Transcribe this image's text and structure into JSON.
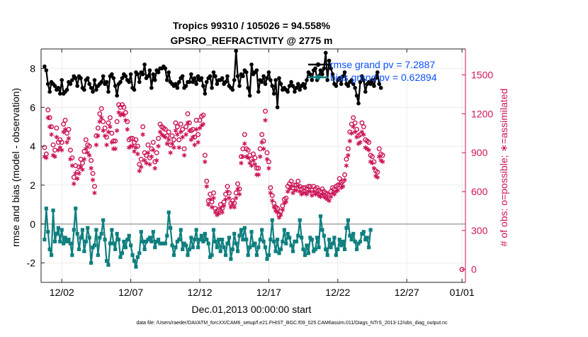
{
  "chart_data": {
    "type": "line",
    "title_line1": "Tropics 99310 / 105026 = 94.558%",
    "title_line2": "GPSRO_REFRACTIVITY @ 2775 m",
    "xlabel": "Dec.01,2013 00:00:00 start",
    "ylabel_left": "rmse and bias (model - observation)",
    "ylabel_right": "# of obs: o=possible; ∗=assimilated",
    "footnote": "data file: /Users/raeder/DAI/ATM_forcXX/CAM6_setup/f.e21.FHIST_BGC.f09_025.CAM6assim.011/Diags_NTrS_2013-12/obs_diag_output.nc",
    "xlim": [
      0.5,
      31.25
    ],
    "ylim_left": [
      -3,
      9
    ],
    "ylim_right": [
      -100,
      1700
    ],
    "x_ticks": [
      {
        "value": 2,
        "label": "12/02"
      },
      {
        "value": 7,
        "label": "12/07"
      },
      {
        "value": 12,
        "label": "12/12"
      },
      {
        "value": 17,
        "label": "12/17"
      },
      {
        "value": 22,
        "label": "12/22"
      },
      {
        "value": 27,
        "label": "12/27"
      },
      {
        "value": 31,
        "label": "01/01"
      }
    ],
    "y_ticks_left": [
      {
        "value": -2,
        "label": "-2"
      },
      {
        "value": 0,
        "label": "0"
      },
      {
        "value": 2,
        "label": "2"
      },
      {
        "value": 4,
        "label": "4"
      },
      {
        "value": 6,
        "label": "6"
      },
      {
        "value": 8,
        "label": "8"
      }
    ],
    "y_ticks_right": [
      {
        "value": 0,
        "label": "0"
      },
      {
        "value": 300,
        "label": "300"
      },
      {
        "value": 600,
        "label": "600"
      },
      {
        "value": 900,
        "label": "900"
      },
      {
        "value": 1200,
        "label": "1200"
      },
      {
        "value": 1500,
        "label": "1500"
      }
    ],
    "zero_line": 0,
    "grid": true,
    "legend_position": "top-right",
    "legend": [
      {
        "name": "rmse grand pv = 7.2887",
        "color": "#000000"
      },
      {
        "name": "bias grand pv = 0.62894",
        "color": "#0f7f7f"
      }
    ],
    "extra_possible_point": {
      "x": 31,
      "count": 0
    },
    "series": {
      "rmse": {
        "color": "#000000",
        "axis": "left",
        "x_start": 0.75,
        "x_step": 0.125,
        "values": [
          8.1,
          7.9,
          7.2,
          6.8,
          7.3,
          7.2,
          7.1,
          6.9,
          7.0,
          6.7,
          7.4,
          6.7,
          6.8,
          6.9,
          7.3,
          7.2,
          7.4,
          7.6,
          7.5,
          7.1,
          7.6,
          7.5,
          7.0,
          6.9,
          7.4,
          7.5,
          7.2,
          7.0,
          6.8,
          7.4,
          6.9,
          7.1,
          7.2,
          7.3,
          7.6,
          7.2,
          7.3,
          6.8,
          7.6,
          7.7,
          7.5,
          7.1,
          6.6,
          7.2,
          7.3,
          7.5,
          7.7,
          7.6,
          7.4,
          7.3,
          7.7,
          7.0,
          6.9,
          7.8,
          7.7,
          7.3,
          7.8,
          7.7,
          8.2,
          7.5,
          7.6,
          7.9,
          7.0,
          7.7,
          7.4,
          7.9,
          7.8,
          8.0,
          8.0,
          8.1,
          8.0,
          7.4,
          7.8,
          7.3,
          7.2,
          7.1,
          7.2,
          7.0,
          7.3,
          7.5,
          7.6,
          7.0,
          7.1,
          7.3,
          7.3,
          7.7,
          7.3,
          7.5,
          7.2,
          7.6,
          7.4,
          7.5,
          7.1,
          6.7,
          7.3,
          7.5,
          7.6,
          7.0,
          7.8,
          7.6,
          7.2,
          7.4,
          7.4,
          7.5,
          7.2,
          7.3,
          7.6,
          7.1,
          7.0,
          6.9,
          7.4,
          8.9,
          7.6,
          7.1,
          7.7,
          7.6,
          7.9,
          7.8,
          7.0,
          6.6,
          8.2,
          7.7,
          7.8,
          7.9,
          6.8,
          7.4,
          7.3,
          7.6,
          7.2,
          7.5,
          7.8,
          7.4,
          7.1,
          6.7,
          7.4,
          6.0,
          7.5,
          7.2,
          6.9,
          7.0,
          6.9,
          6.8,
          7.1,
          7.3,
          7.1,
          6.8,
          7.0,
          7.2,
          6.9,
          7.1,
          7.2,
          7.0,
          7.4,
          7.8,
          7.7,
          7.4,
          7.9,
          8.0,
          7.4,
          7.6,
          7.9,
          7.7,
          8.0,
          8.8,
          7.4,
          8.4,
          8.0,
          7.7,
          7.2,
          7.1,
          7.4,
          7.5,
          7.2,
          7.6,
          7.8,
          7.2,
          7.1,
          7.3,
          7.4,
          7.2,
          7.0,
          6.6,
          6.2,
          7.3,
          7.6,
          7.4,
          6.8,
          7.2,
          7.3,
          7.2,
          7.4,
          7.1,
          7.5,
          7.8,
          7.2,
          7.0
        ]
      },
      "bias": {
        "color": "#0f7f7f",
        "axis": "left",
        "x_start": 0.75,
        "x_step": 0.125,
        "values": [
          -0.8,
          0.8,
          -0.4,
          -1.3,
          -1.6,
          0.7,
          -0.9,
          -0.5,
          -0.2,
          -0.9,
          -0.3,
          -1.0,
          -0.7,
          -0.9,
          -0.8,
          -1.0,
          -1.6,
          -0.3,
          0.8,
          -0.5,
          -1.3,
          -0.7,
          -0.3,
          -1.4,
          -0.9,
          -0.2,
          -0.7,
          -2.0,
          -1.2,
          -1.1,
          -0.3,
          -1.6,
          -0.7,
          -0.5,
          0.2,
          -0.8,
          -1.9,
          -2.1,
          -1.0,
          -0.3,
          -1.0,
          -1.3,
          -0.5,
          -0.8,
          -1.7,
          -1.5,
          -0.9,
          -1.2,
          -0.8,
          -0.6,
          -1.1,
          -1.6,
          -1.9,
          -2.2,
          -1.7,
          -1.5,
          -0.4,
          -0.9,
          -1.3,
          -0.9,
          -0.8,
          -0.7,
          -0.9,
          -0.4,
          -1.2,
          -0.9,
          -0.8,
          -1.0,
          -1.0,
          -1.0,
          -1.0,
          -0.6,
          0.6,
          -0.2,
          -1.1,
          -1.6,
          -1.2,
          -0.9,
          -0.8,
          -0.3,
          -1.3,
          -1.0,
          -1.1,
          -1.6,
          -1.3,
          -0.7,
          -1.2,
          -0.8,
          -0.3,
          -1.2,
          -0.8,
          -0.6,
          -0.9,
          -0.5,
          -0.8,
          -1.0,
          -1.7,
          -1.6,
          -0.3,
          -0.9,
          -1.2,
          -0.8,
          -1.4,
          -0.8,
          -1.2,
          -1.6,
          -1.0,
          -0.7,
          -1.8,
          -1.3,
          -0.5,
          -1.0,
          -1.4,
          -0.6,
          -0.3,
          -0.8,
          -0.2,
          -0.8,
          -1.6,
          -1.2,
          -0.4,
          -1.1,
          -1.0,
          -1.6,
          -1.2,
          -0.8,
          -0.3,
          -0.9,
          -1.2,
          -1.8,
          -1.6,
          -0.8,
          0.2,
          -0.9,
          -1.4,
          -0.8,
          -1.5,
          -1.3,
          -0.9,
          -0.3,
          -1.0,
          -0.5,
          -0.7,
          -1.1,
          -1.4,
          -0.9,
          -0.9,
          -0.6,
          0.2,
          -0.7,
          -1.3,
          -1.6,
          -1.1,
          -1.5,
          -0.7,
          -0.8,
          -1.4,
          -1.3,
          -0.7,
          -1.2,
          0.4,
          -0.3,
          -0.6,
          -1.3,
          -1.6,
          -0.8,
          -1.2,
          -1.0,
          -0.7,
          -1.6,
          -1.3,
          -0.8,
          -1.1,
          -0.9,
          -1.3,
          -0.2,
          0.2,
          -0.6,
          -0.8,
          -0.5,
          -0.9,
          -1.3,
          -1.0,
          -0.9,
          -0.5,
          -0.4,
          -0.8,
          -0.7,
          -1.2,
          -0.3
        ]
      },
      "obs_possible": {
        "color": "#cc1458",
        "axis": "right",
        "marker": "circle",
        "x_start": 0.75,
        "x_step": 0.125,
        "values": [
          940,
          890,
          1230,
          1170,
          1100,
          960,
          920,
          1090,
          980,
          1000,
          980,
          1120,
          1150,
          1050,
          1080,
          920,
          860,
          710,
          800,
          750,
          790,
          850,
          820,
          910,
          1000,
          960,
          950,
          840,
          740,
          640,
          1030,
          1090,
          1200,
          1240,
          1140,
          1090,
          1020,
          1130,
          1170,
          1050,
          990,
          990,
          1140,
          1270,
          1250,
          1270,
          1250,
          1210,
          1140,
          1000,
          1010,
          1010,
          980,
          1000,
          950,
          810,
          850,
          1100,
          900,
          880,
          960,
          860,
          930,
          980,
          830,
          900,
          1010,
          1120,
          1100,
          1090,
          1080,
          1030,
          1060,
          960,
          1030,
          1000,
          1130,
          1100,
          1000,
          1120,
          1080,
          930,
          1100,
          1200,
          1130,
          1070,
          1080,
          1020,
          1150,
          1040,
          1150,
          1180,
          1190,
          880,
          680,
          530,
          580,
          520,
          590,
          470,
          450,
          460,
          500,
          470,
          520,
          580,
          640,
          590,
          510,
          530,
          510,
          590,
          660,
          620,
          870,
          930,
          1040,
          930,
          920,
          880,
          850,
          890,
          860,
          780,
          780,
          930,
          1040,
          990,
          1220,
          900,
          830,
          630,
          570,
          510,
          480,
          470,
          420,
          450,
          490,
          540,
          550,
          640,
          660,
          680,
          630,
          650,
          650,
          680,
          640,
          620,
          630,
          630,
          620,
          640,
          640,
          610,
          640,
          620,
          630,
          610,
          600,
          620,
          600,
          590,
          580,
          570,
          600,
          630,
          620,
          640,
          650,
          700,
          670,
          680,
          730,
          850,
          930,
          1060,
          1120,
          1170,
          1130,
          1080,
          1030,
          1040,
          1130,
          1100,
          1000,
          990,
          980,
          880,
          870,
          830,
          760,
          750,
          930,
          890,
          880
        ]
      },
      "obs_assimilated": {
        "color": "#cc1458",
        "axis": "right",
        "marker": "asterisk",
        "x_start": 0.75,
        "x_step": 0.125,
        "values": [
          870,
          860,
          1170,
          1100,
          1040,
          880,
          870,
          1020,
          920,
          940,
          920,
          1060,
          1080,
          980,
          1010,
          850,
          800,
          660,
          740,
          700,
          740,
          790,
          770,
          850,
          930,
          900,
          880,
          780,
          690,
          590,
          960,
          1030,
          1140,
          1170,
          1070,
          1030,
          960,
          1060,
          1100,
          980,
          930,
          930,
          1070,
          1210,
          1190,
          1200,
          1190,
          1150,
          1080,
          940,
          950,
          950,
          910,
          940,
          890,
          760,
          790,
          1040,
          840,
          820,
          900,
          810,
          870,
          920,
          780,
          840,
          950,
          1060,
          1040,
          1030,
          1020,
          970,
          1000,
          900,
          970,
          940,
          1070,
          1040,
          940,
          1060,
          1020,
          880,
          1040,
          1130,
          1070,
          1000,
          1020,
          960,
          1080,
          980,
          1090,
          1110,
          1120,
          830,
          640,
          500,
          540,
          480,
          550,
          440,
          420,
          430,
          470,
          440,
          490,
          540,
          600,
          550,
          480,
          500,
          480,
          550,
          620,
          580,
          820,
          870,
          970,
          870,
          860,
          820,
          800,
          840,
          810,
          730,
          730,
          870,
          980,
          930,
          1150,
          850,
          780,
          590,
          530,
          480,
          450,
          440,
          400,
          420,
          460,
          510,
          520,
          600,
          620,
          640,
          590,
          610,
          610,
          640,
          600,
          580,
          590,
          590,
          580,
          600,
          600,
          570,
          600,
          580,
          590,
          570,
          560,
          580,
          560,
          550,
          540,
          530,
          560,
          590,
          580,
          600,
          610,
          660,
          630,
          640,
          690,
          800,
          880,
          990,
          1050,
          1100,
          1060,
          1020,
          970,
          980,
          1060,
          1040,
          940,
          930,
          920,
          830,
          820,
          780,
          720,
          710,
          870,
          840,
          830
        ]
      }
    }
  }
}
